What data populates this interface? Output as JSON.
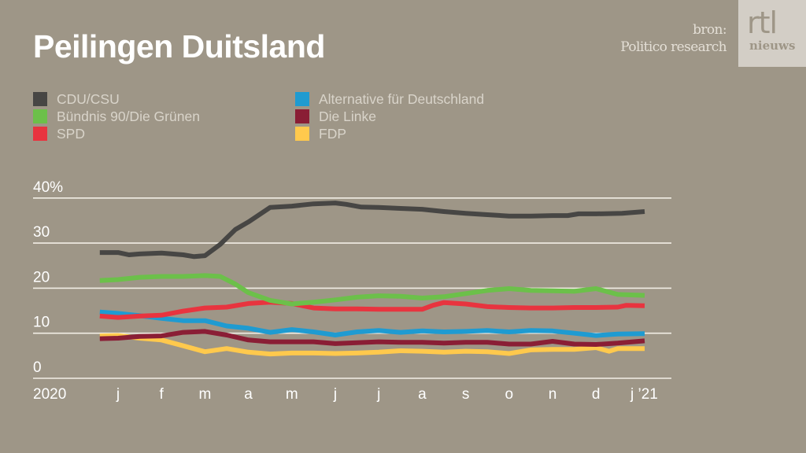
{
  "header": {
    "title": "Peilingen Duitsland",
    "source_label": "bron:",
    "source_name": "Politico research",
    "logo_top": "rtl",
    "logo_bottom": "nieuws"
  },
  "legend": [
    {
      "label": "CDU/CSU",
      "color": "#474644"
    },
    {
      "label": "Bündnis 90/Die Grünen",
      "color": "#6cc04a"
    },
    {
      "label": "SPD",
      "color": "#e8343f"
    },
    {
      "label": "Alternative für Deutschland",
      "color": "#1f9bd1"
    },
    {
      "label": "Die Linke",
      "color": "#8a1e35"
    },
    {
      "label": "FDP",
      "color": "#ffc94d"
    }
  ],
  "chart_data": {
    "type": "line",
    "title": "Peilingen Duitsland",
    "xlabel": "",
    "ylabel": "",
    "ylim": [
      0,
      40
    ],
    "yticks": [
      0,
      10,
      20,
      30,
      40
    ],
    "ytick_labels": [
      "0",
      "10",
      "20",
      "30",
      "40%"
    ],
    "x_unit": "months since January 2020",
    "xlim": [
      -1.5,
      13.0
    ],
    "xticks": [
      0,
      1,
      2,
      3,
      4,
      5,
      6,
      7,
      8,
      9,
      10,
      11,
      12
    ],
    "xtick_labels": [
      "j",
      "f",
      "m",
      "a",
      "m",
      "j",
      "j",
      "a",
      "s",
      "o",
      "n",
      "d",
      "j ’21"
    ],
    "year_label": "2020",
    "grid": true,
    "legend_position": "top-left",
    "series": [
      {
        "name": "CDU/CSU",
        "color": "#474644",
        "x": [
          -0.42,
          0,
          0.25,
          0.5,
          1,
          1.5,
          1.75,
          2,
          2.35,
          2.7,
          3,
          3.5,
          4,
          4.5,
          5,
          5.25,
          5.6,
          6,
          6.5,
          7,
          7.5,
          8,
          8.5,
          9,
          9.5,
          10,
          10.35,
          10.6,
          11,
          11.6,
          12.12
        ],
        "values": [
          27.9,
          27.9,
          27.4,
          27.6,
          27.8,
          27.4,
          27.0,
          27.2,
          29.7,
          33.0,
          34.7,
          37.9,
          38.2,
          38.7,
          38.9,
          38.6,
          38.0,
          37.9,
          37.7,
          37.5,
          37.0,
          36.6,
          36.3,
          36.0,
          36.0,
          36.1,
          36.1,
          36.5,
          36.5,
          36.6,
          37.0
        ]
      },
      {
        "name": "Bündnis 90/Die Grünen",
        "color": "#6cc04a",
        "x": [
          -0.42,
          0,
          0.5,
          1,
          1.5,
          2,
          2.35,
          2.7,
          3,
          3.5,
          4,
          4.5,
          5,
          5.5,
          6,
          6.5,
          7,
          7.5,
          8,
          8.5,
          9,
          9.5,
          10,
          10.5,
          11,
          11.5,
          12.12
        ],
        "values": [
          21.7,
          21.9,
          22.4,
          22.6,
          22.6,
          22.8,
          22.6,
          20.9,
          19.0,
          17.3,
          16.5,
          16.9,
          17.4,
          18.0,
          18.3,
          18.2,
          17.8,
          18.1,
          18.8,
          19.5,
          19.9,
          19.5,
          19.4,
          19.3,
          19.9,
          18.6,
          18.4
        ]
      },
      {
        "name": "SPD",
        "color": "#e8343f",
        "x": [
          -0.42,
          0,
          0.5,
          1,
          1.5,
          2,
          2.5,
          3,
          3.5,
          4,
          4.5,
          5,
          5.5,
          6,
          6.5,
          7,
          7.25,
          7.5,
          8,
          8.5,
          9,
          9.5,
          10,
          10.5,
          11,
          11.5,
          11.7,
          12.12
        ],
        "values": [
          13.8,
          13.5,
          13.8,
          14.0,
          14.9,
          15.6,
          15.8,
          16.6,
          16.9,
          16.6,
          15.6,
          15.4,
          15.4,
          15.3,
          15.3,
          15.3,
          16.2,
          16.8,
          16.5,
          15.9,
          15.7,
          15.6,
          15.6,
          15.7,
          15.7,
          15.8,
          16.2,
          16.1
        ]
      },
      {
        "name": "Alternative für Deutschland",
        "color": "#1f9bd1",
        "x": [
          -0.42,
          0,
          0.5,
          1,
          1.5,
          2,
          2.5,
          3,
          3.5,
          4,
          4.5,
          5,
          5.5,
          6,
          6.5,
          7,
          7.5,
          8,
          8.5,
          9,
          9.5,
          10,
          10.5,
          11,
          11.5,
          12.12
        ],
        "values": [
          14.7,
          14.4,
          13.9,
          13.3,
          12.8,
          12.8,
          11.6,
          11.1,
          10.2,
          10.8,
          10.3,
          9.6,
          10.3,
          10.6,
          10.2,
          10.5,
          10.3,
          10.4,
          10.6,
          10.3,
          10.6,
          10.5,
          10.0,
          9.5,
          9.8,
          9.9
        ]
      },
      {
        "name": "Die Linke",
        "color": "#8a1e35",
        "x": [
          -0.42,
          0,
          0.5,
          1,
          1.5,
          2,
          2.5,
          3,
          3.5,
          4,
          4.5,
          5,
          5.5,
          6,
          6.5,
          7,
          7.5,
          8,
          8.5,
          9,
          9.5,
          10,
          10.5,
          11,
          11.5,
          12.12
        ],
        "values": [
          8.8,
          8.9,
          9.3,
          9.4,
          10.2,
          10.4,
          9.6,
          8.5,
          8.1,
          8.1,
          8.1,
          7.7,
          7.9,
          8.1,
          8.0,
          8.0,
          7.8,
          8.0,
          8.0,
          7.6,
          7.6,
          8.2,
          7.6,
          7.5,
          7.8,
          8.3
        ]
      },
      {
        "name": "FDP",
        "color": "#ffc94d",
        "x": [
          -0.42,
          0,
          0.5,
          1,
          1.5,
          2,
          2.5,
          3,
          3.5,
          4,
          4.5,
          5,
          5.5,
          6,
          6.5,
          7,
          7.5,
          8,
          8.5,
          9,
          9.5,
          10,
          10.5,
          11,
          11.3,
          11.5,
          12.12
        ],
        "values": [
          9.4,
          9.5,
          8.9,
          8.5,
          7.2,
          5.9,
          6.6,
          5.8,
          5.4,
          5.6,
          5.6,
          5.5,
          5.6,
          5.8,
          6.1,
          6.0,
          5.8,
          6.0,
          5.9,
          5.5,
          6.3,
          6.4,
          6.4,
          6.8,
          6.0,
          6.6,
          6.6
        ]
      }
    ]
  }
}
